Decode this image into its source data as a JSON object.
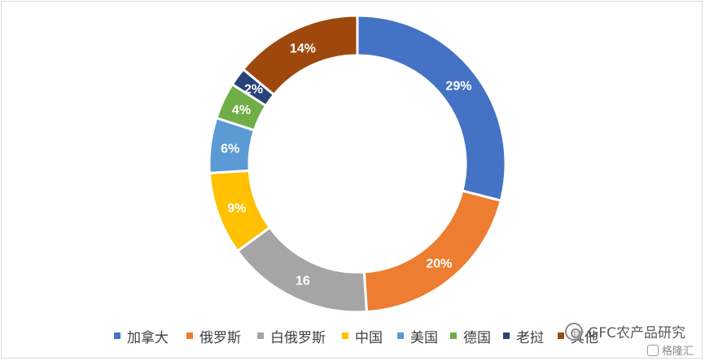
{
  "chart_data": {
    "type": "pie",
    "style": "donut",
    "categories": [
      "加拿大",
      "俄罗斯",
      "白俄罗斯",
      "中国",
      "美国",
      "德国",
      "老挝",
      "其他"
    ],
    "values": [
      29,
      20,
      16,
      9,
      6,
      4,
      2,
      14
    ],
    "labels": [
      "29%",
      "20%",
      "16",
      "9%",
      "6%",
      "4%",
      "2%",
      "14%"
    ],
    "colors": [
      "#4472C4",
      "#ED7D31",
      "#A5A5A5",
      "#FFC000",
      "#5B9BD5",
      "#70AD47",
      "#264478",
      "#9E480E"
    ],
    "legend_position": "bottom",
    "title": ""
  },
  "watermark": {
    "text": "GFC农产品研究",
    "secondary": "格隆汇"
  }
}
